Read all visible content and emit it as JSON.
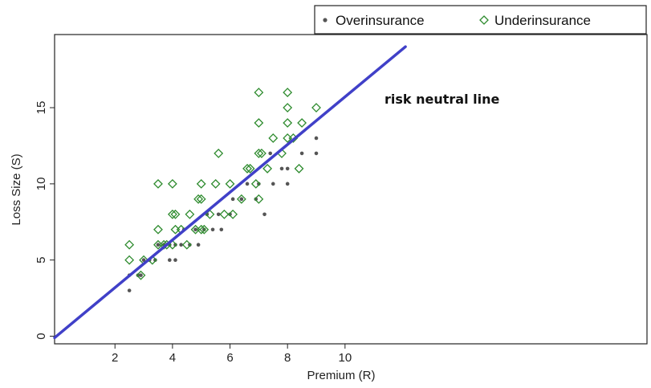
{
  "chart_data": {
    "type": "scatter",
    "title": "",
    "xlabel": "Premium (R)",
    "ylabel": "Loss Size (S)",
    "xlim": [
      -0.1,
      20.5
    ],
    "ylim": [
      -0.5,
      19.8
    ],
    "x_ticks": [
      2,
      4,
      6,
      8,
      10
    ],
    "y_ticks": [
      0,
      5,
      10,
      15
    ],
    "legend_position": "top-right",
    "grid": false,
    "series": [
      {
        "name": "Overinsurance",
        "marker": "filled-dot",
        "color": "#555555",
        "points": [
          [
            2.5,
            3
          ],
          [
            2.5,
            4
          ],
          [
            2.8,
            4
          ],
          [
            2.9,
            4
          ],
          [
            3,
            5
          ],
          [
            3.2,
            5
          ],
          [
            3.4,
            5
          ],
          [
            3.5,
            6
          ],
          [
            3.7,
            6
          ],
          [
            3.9,
            5
          ],
          [
            3.9,
            6
          ],
          [
            4.1,
            5
          ],
          [
            4.1,
            6
          ],
          [
            4.3,
            6
          ],
          [
            4.4,
            7
          ],
          [
            4.6,
            6
          ],
          [
            4.9,
            6
          ],
          [
            4.8,
            7
          ],
          [
            5.1,
            7
          ],
          [
            5.2,
            8
          ],
          [
            5.4,
            7
          ],
          [
            5.6,
            8
          ],
          [
            5.7,
            7
          ],
          [
            6,
            8
          ],
          [
            6.1,
            9
          ],
          [
            6.4,
            9
          ],
          [
            6.6,
            10
          ],
          [
            6.9,
            9
          ],
          [
            7,
            10
          ],
          [
            7.2,
            8
          ],
          [
            7.5,
            10
          ],
          [
            7.8,
            11
          ],
          [
            8,
            10
          ],
          [
            8,
            11
          ],
          [
            8.5,
            12
          ],
          [
            9,
            12
          ],
          [
            9,
            13
          ],
          [
            7.4,
            12
          ]
        ]
      },
      {
        "name": "Underinsurance",
        "marker": "open-diamond",
        "color": "#2e8b2e",
        "points": [
          [
            2.5,
            5
          ],
          [
            2.5,
            6
          ],
          [
            2.9,
            4
          ],
          [
            3,
            5
          ],
          [
            3.3,
            5
          ],
          [
            3.5,
            6
          ],
          [
            3.5,
            7
          ],
          [
            3.5,
            10
          ],
          [
            3.7,
            6
          ],
          [
            3.8,
            6
          ],
          [
            4,
            6
          ],
          [
            4,
            8
          ],
          [
            4,
            10
          ],
          [
            4.1,
            7
          ],
          [
            4.1,
            8
          ],
          [
            4.3,
            7
          ],
          [
            4.5,
            6
          ],
          [
            4.6,
            8
          ],
          [
            4.8,
            7
          ],
          [
            4.9,
            9
          ],
          [
            5,
            7
          ],
          [
            5,
            9
          ],
          [
            5,
            10
          ],
          [
            5.1,
            7
          ],
          [
            5.3,
            8
          ],
          [
            5.5,
            10
          ],
          [
            5.6,
            12
          ],
          [
            5.8,
            8
          ],
          [
            6,
            10
          ],
          [
            6.1,
            8
          ],
          [
            6.4,
            9
          ],
          [
            6.6,
            11
          ],
          [
            6.7,
            11
          ],
          [
            6.9,
            10
          ],
          [
            7,
            9
          ],
          [
            7,
            12
          ],
          [
            7,
            14
          ],
          [
            7,
            16
          ],
          [
            7.1,
            12
          ],
          [
            7.3,
            11
          ],
          [
            7.5,
            13
          ],
          [
            7.8,
            12
          ],
          [
            8,
            13
          ],
          [
            8,
            14
          ],
          [
            8,
            15
          ],
          [
            8,
            16
          ],
          [
            8.2,
            13
          ],
          [
            8.4,
            11
          ],
          [
            8.5,
            14
          ],
          [
            9,
            15
          ]
        ]
      }
    ],
    "reference_line": {
      "label": "risk neutral line",
      "color": "#4040c8",
      "from": [
        -0.1,
        -0.1
      ],
      "to": [
        12.1,
        19.0
      ]
    }
  }
}
